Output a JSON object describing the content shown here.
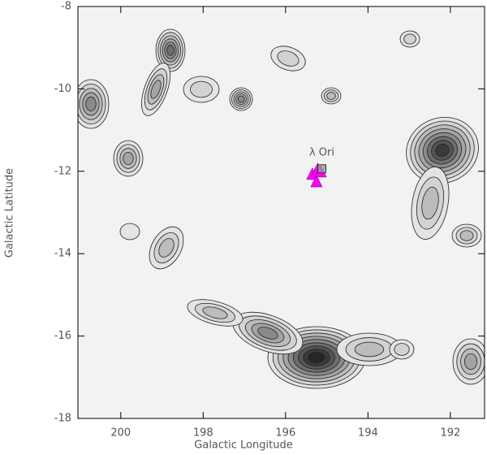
{
  "chart_data": {
    "type": "scatter",
    "xlabel": "Galactic Longitude",
    "ylabel": "Galactic Latitude",
    "xlim": [
      201.04,
      191.17
    ],
    "ylim": [
      -18,
      -8
    ],
    "xticks": [
      200,
      198,
      196,
      194,
      192
    ],
    "yticks": [
      -18,
      -16,
      -14,
      -12,
      -10,
      -8
    ],
    "series": [
      {
        "marker": "triangle",
        "color": "#ff00ff",
        "x": [
          195.35,
          195.22,
          195.25,
          195.15
        ],
        "y": [
          -12.08,
          -11.96,
          -12.26,
          -12.02
        ]
      },
      {
        "marker": "square",
        "color": "#999999",
        "x": [
          195.12
        ],
        "y": [
          -11.94
        ]
      }
    ],
    "annotations": [
      {
        "text": "λ Ori",
        "series": 1
      }
    ]
  }
}
